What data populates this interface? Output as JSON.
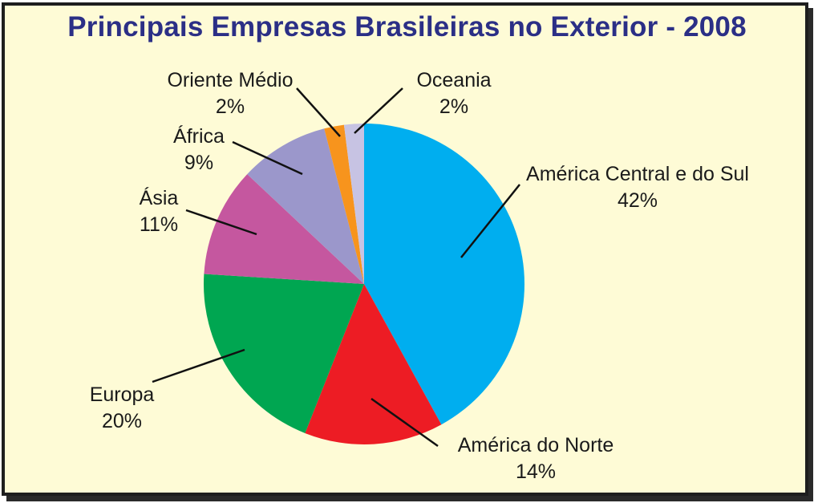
{
  "chart_data": {
    "type": "pie",
    "title": "Principais Empresas Brasileiras no Exterior - 2008",
    "slices": [
      {
        "label": "América Central e do Sul",
        "percent_label": "42%",
        "value": 42,
        "color": "#00aeef"
      },
      {
        "label": "América do Norte",
        "percent_label": "14%",
        "value": 14,
        "color": "#ed1c24"
      },
      {
        "label": "Europa",
        "percent_label": "20%",
        "value": 20,
        "color": "#00a651"
      },
      {
        "label": "Ásia",
        "percent_label": "11%",
        "value": 11,
        "color": "#c5579f"
      },
      {
        "label": "África",
        "percent_label": "9%",
        "value": 9,
        "color": "#9b97cb"
      },
      {
        "label": "Oriente Médio",
        "percent_label": "2%",
        "value": 2,
        "color": "#f7941d"
      },
      {
        "label": "Oceania",
        "percent_label": "2%",
        "value": 2,
        "color": "#c7c3e3"
      }
    ],
    "legend": "none"
  },
  "colors": {
    "background": "#fefbd6",
    "title": "#2b2f86",
    "border": "#1e1e1e"
  }
}
